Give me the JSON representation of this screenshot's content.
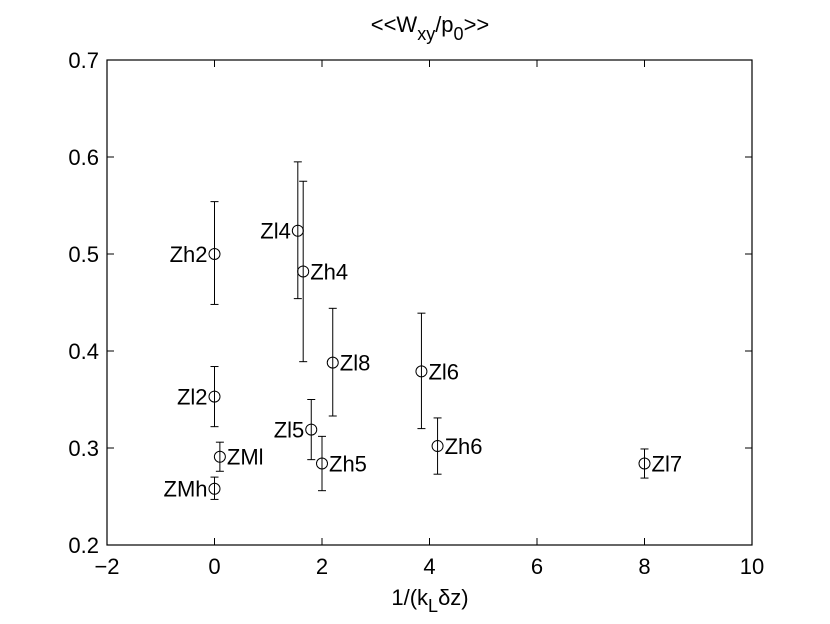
{
  "chart_data": {
    "type": "scatter",
    "title": "<<W",
    "title_sub1": "xy",
    "title_mid": "/p",
    "title_sub2": "0",
    "title_end": ">>",
    "xlabel": "1/(k",
    "xlabel_sub": "L",
    "xlabel_end": "δz)",
    "ylabel": "",
    "xlim": [
      -2,
      10
    ],
    "ylim": [
      0.2,
      0.7
    ],
    "xticks": [
      -2,
      0,
      2,
      4,
      6,
      8,
      10
    ],
    "xtick_labels": [
      "−2",
      "0",
      "2",
      "4",
      "6",
      "8",
      "10"
    ],
    "yticks": [
      0.2,
      0.3,
      0.4,
      0.5,
      0.6,
      0.7
    ],
    "ytick_labels": [
      "0.2",
      "0.3",
      "0.4",
      "0.5",
      "0.6",
      "0.7"
    ],
    "grid": false,
    "marker": "open-circle",
    "color": "#000000",
    "points": [
      {
        "label": "Zh2",
        "x": 0.0,
        "y": 0.5,
        "err_low": 0.448,
        "err_high": 0.554,
        "label_side": "left"
      },
      {
        "label": "Zl2",
        "x": 0.0,
        "y": 0.353,
        "err_low": 0.322,
        "err_high": 0.384,
        "label_side": "left"
      },
      {
        "label": "ZMh",
        "x": 0.0,
        "y": 0.258,
        "err_low": 0.247,
        "err_high": 0.27,
        "label_side": "left"
      },
      {
        "label": "ZMl",
        "x": 0.1,
        "y": 0.291,
        "err_low": 0.276,
        "err_high": 0.306,
        "label_side": "right"
      },
      {
        "label": "Zl4",
        "x": 1.55,
        "y": 0.524,
        "err_low": 0.454,
        "err_high": 0.595,
        "label_side": "left"
      },
      {
        "label": "Zh4",
        "x": 1.65,
        "y": 0.482,
        "err_low": 0.389,
        "err_high": 0.575,
        "label_side": "right"
      },
      {
        "label": "Zl5",
        "x": 1.8,
        "y": 0.319,
        "err_low": 0.288,
        "err_high": 0.35,
        "label_side": "left"
      },
      {
        "label": "Zh5",
        "x": 2.0,
        "y": 0.284,
        "err_low": 0.256,
        "err_high": 0.312,
        "label_side": "right"
      },
      {
        "label": "Zl8",
        "x": 2.2,
        "y": 0.388,
        "err_low": 0.333,
        "err_high": 0.444,
        "label_side": "right"
      },
      {
        "label": "Zl6",
        "x": 3.85,
        "y": 0.379,
        "err_low": 0.32,
        "err_high": 0.439,
        "label_side": "right"
      },
      {
        "label": "Zh6",
        "x": 4.15,
        "y": 0.302,
        "err_low": 0.273,
        "err_high": 0.331,
        "label_side": "right"
      },
      {
        "label": "Zl7",
        "x": 8.0,
        "y": 0.284,
        "err_low": 0.269,
        "err_high": 0.299,
        "label_side": "right"
      }
    ]
  }
}
